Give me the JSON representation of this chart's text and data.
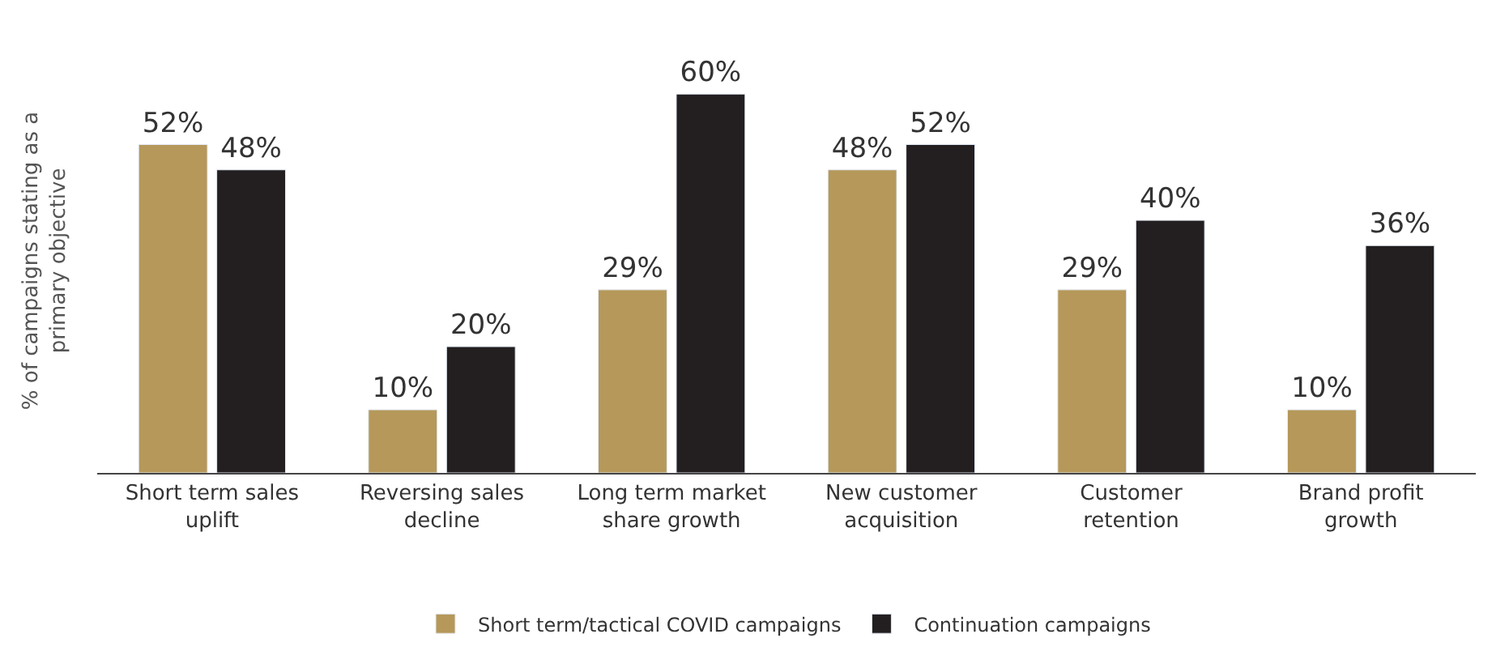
{
  "chart_data": {
    "type": "bar",
    "ylabel": "% of campaigns stating as a primary objective",
    "categories": [
      "Short term sales uplift",
      "Reversing sales decline",
      "Long term market share growth",
      "New customer acquisition",
      "Customer retention",
      "Brand profit growth"
    ],
    "series": [
      {
        "name": "Short term/tactical COVID campaigns",
        "color": "#b5985a",
        "values": [
          52,
          10,
          29,
          48,
          29,
          10
        ],
        "value_labels": [
          "52%",
          "10%",
          "29%",
          "48%",
          "29%",
          "10%"
        ]
      },
      {
        "name": "Continuation campaigns",
        "color": "#231f20",
        "values": [
          48,
          20,
          60,
          52,
          40,
          36
        ],
        "value_labels": [
          "48%",
          "20%",
          "60%",
          "52%",
          "40%",
          "36%"
        ]
      }
    ],
    "legend": "bottom"
  }
}
